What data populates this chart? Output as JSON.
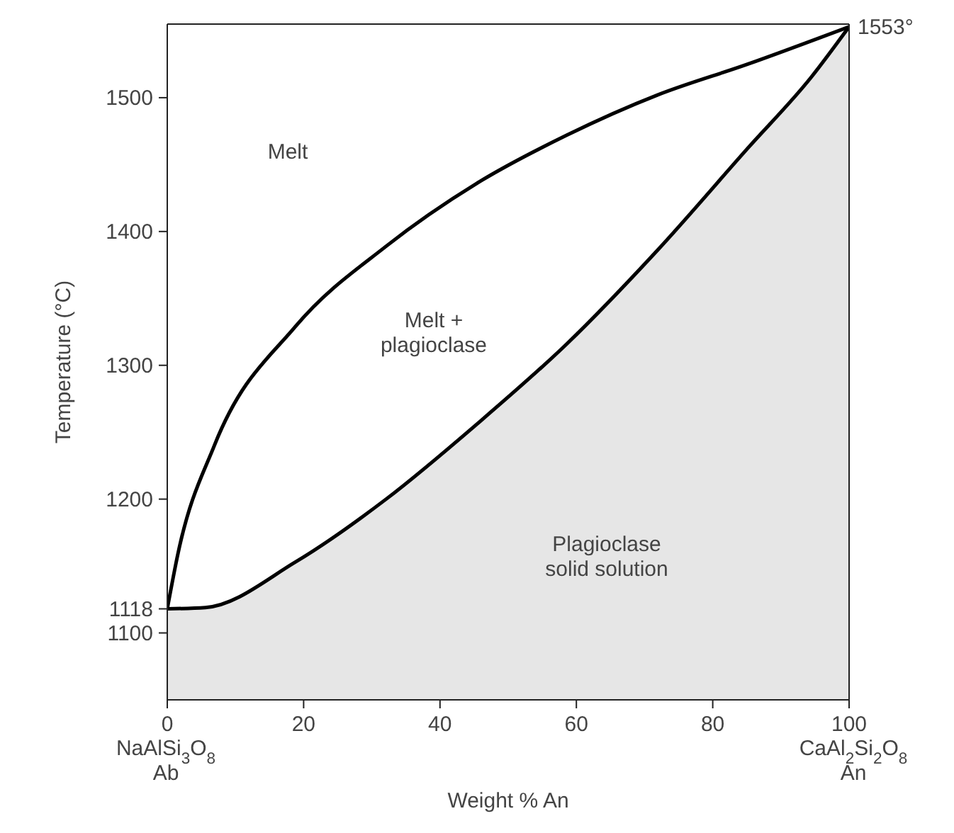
{
  "chart_data": {
    "type": "line",
    "xlabel": "Weight % An",
    "ylabel": "Temperature (°C)",
    "xlim": [
      0,
      100
    ],
    "ylim": [
      1050,
      1555
    ],
    "xticks": [
      0,
      20,
      40,
      60,
      80,
      100
    ],
    "yticks": [
      1100,
      1118,
      1200,
      1300,
      1400,
      1500
    ],
    "grid": false,
    "marker": "none",
    "line_style": "solid",
    "series": [
      {
        "color": "#000000",
        "x": [
          0,
          1.6,
          6.9,
          18.8,
          32.1,
          45.4,
          58.6,
          71.9,
          85.1,
          100
        ],
        "values": [
          1118,
          1160,
          1240,
          1329,
          1389,
          1436,
          1472,
          1502,
          1525,
          1553
        ]
      },
      {
        "type": "area",
        "color": "#e6e6e6",
        "x": [
          0,
          5.6,
          18.8,
          32.1,
          45.4,
          58.6,
          71.9,
          85.1,
          94.4,
          100
        ],
        "values": [
          1118,
          1119,
          1153,
          1200,
          1256,
          1316,
          1386,
          1462,
          1515,
          1553
        ]
      }
    ],
    "annotations": [
      "Melt",
      "Melt +\nplagioclase",
      "Plagioclase\nsolid solution",
      {
        "text": "1553°",
        "x": 100,
        "y": 1553
      },
      "NaAlSi$_{3}$O$_{8}$\nAb",
      "CaAl$_{2}$Si$_{2}$O$_{8}$\nAn"
    ]
  }
}
